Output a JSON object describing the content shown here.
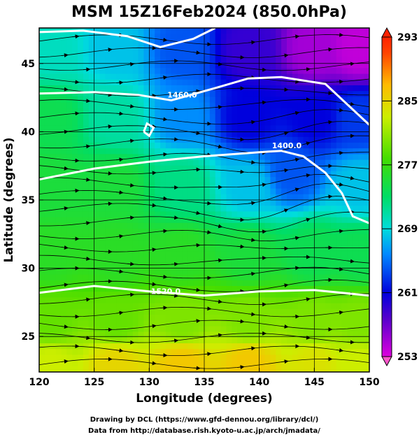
{
  "chart_data": {
    "type": "heatmap",
    "title": "MSM 15Z16Feb2024 (850.0hPa)",
    "xlabel": "Longitude (degrees)",
    "ylabel": "Latitude  (degrees)",
    "xlim": [
      120,
      150
    ],
    "ylim": [
      22.4,
      47.6
    ],
    "x_ticks": [
      120,
      125,
      130,
      135,
      140,
      145,
      150
    ],
    "y_ticks": [
      25,
      30,
      35,
      40,
      45
    ],
    "grid": true,
    "colorbar": {
      "min": 253,
      "max": 293,
      "ticks": [
        253,
        261,
        269,
        277,
        285,
        293
      ]
    },
    "temperature_field_points": [
      {
        "lon": 121,
        "lat": 46,
        "value": 270
      },
      {
        "lon": 127,
        "lat": 46,
        "value": 268
      },
      {
        "lon": 133,
        "lat": 46,
        "value": 264
      },
      {
        "lon": 139,
        "lat": 46,
        "value": 259
      },
      {
        "lon": 145,
        "lat": 46,
        "value": 255
      },
      {
        "lon": 149,
        "lat": 46,
        "value": 254
      },
      {
        "lon": 121,
        "lat": 41,
        "value": 274
      },
      {
        "lon": 127,
        "lat": 41,
        "value": 271
      },
      {
        "lon": 133,
        "lat": 41,
        "value": 266
      },
      {
        "lon": 139,
        "lat": 41,
        "value": 261
      },
      {
        "lon": 145,
        "lat": 41,
        "value": 261
      },
      {
        "lon": 149,
        "lat": 41,
        "value": 263
      },
      {
        "lon": 121,
        "lat": 36,
        "value": 275
      },
      {
        "lon": 127,
        "lat": 36,
        "value": 275
      },
      {
        "lon": 133,
        "lat": 36,
        "value": 272
      },
      {
        "lon": 139,
        "lat": 36,
        "value": 268
      },
      {
        "lon": 143,
        "lat": 37,
        "value": 264
      },
      {
        "lon": 149,
        "lat": 36,
        "value": 268
      },
      {
        "lon": 121,
        "lat": 31,
        "value": 276
      },
      {
        "lon": 127,
        "lat": 31,
        "value": 276
      },
      {
        "lon": 133,
        "lat": 31,
        "value": 276
      },
      {
        "lon": 139,
        "lat": 31,
        "value": 275
      },
      {
        "lon": 145,
        "lat": 31,
        "value": 274
      },
      {
        "lon": 149,
        "lat": 31,
        "value": 274
      },
      {
        "lon": 121,
        "lat": 26,
        "value": 279
      },
      {
        "lon": 127,
        "lat": 26,
        "value": 279
      },
      {
        "lon": 133,
        "lat": 26,
        "value": 280
      },
      {
        "lon": 139,
        "lat": 26,
        "value": 280
      },
      {
        "lon": 145,
        "lat": 26,
        "value": 280
      },
      {
        "lon": 149,
        "lat": 26,
        "value": 280
      },
      {
        "lon": 121,
        "lat": 23,
        "value": 283
      },
      {
        "lon": 127,
        "lat": 23,
        "value": 285
      },
      {
        "lon": 133,
        "lat": 23,
        "value": 286
      },
      {
        "lon": 139,
        "lat": 23,
        "value": 286
      },
      {
        "lon": 145,
        "lat": 23,
        "value": 284
      },
      {
        "lon": 149,
        "lat": 23,
        "value": 283
      }
    ],
    "height_contours": [
      {
        "label": "1400.0",
        "label_at": [
          142.5,
          38.8
        ],
        "points": [
          [
            120,
            36.5
          ],
          [
            125,
            37.3
          ],
          [
            130,
            37.8
          ],
          [
            135,
            38.2
          ],
          [
            140,
            38.5
          ],
          [
            142,
            38.6
          ],
          [
            144,
            38.2
          ],
          [
            146,
            37.0
          ],
          [
            147.5,
            35.5
          ],
          [
            148.5,
            33.8
          ],
          [
            150,
            33.3
          ]
        ]
      },
      {
        "label": "1460.0",
        "label_at": [
          133,
          42.5
        ],
        "points": [
          [
            120,
            42.8
          ],
          [
            125,
            42.9
          ],
          [
            129,
            42.7
          ],
          [
            132,
            42.3
          ],
          [
            136,
            43.2
          ],
          [
            139,
            43.9
          ],
          [
            142,
            44.0
          ],
          [
            146,
            43.5
          ],
          [
            148,
            42.0
          ],
          [
            150,
            40.5
          ]
        ]
      },
      {
        "label": "1520.0",
        "label_at": [
          131.5,
          28.1
        ],
        "points": [
          [
            120,
            28.2
          ],
          [
            125,
            28.7
          ],
          [
            130,
            28.3
          ],
          [
            135,
            28.0
          ],
          [
            140,
            28.3
          ],
          [
            145,
            28.4
          ],
          [
            150,
            28.0
          ]
        ]
      },
      {
        "label": "",
        "label_at": null,
        "points": [
          [
            120,
            47.3
          ],
          [
            124,
            47.4
          ],
          [
            128,
            47.0
          ],
          [
            131,
            46.2
          ],
          [
            134,
            46.8
          ],
          [
            136,
            47.6
          ]
        ]
      },
      {
        "label": "",
        "label_at": null,
        "points": [
          [
            129.5,
            40.0
          ],
          [
            129.8,
            40.6
          ],
          [
            130.4,
            40.3
          ],
          [
            130.0,
            39.7
          ],
          [
            129.5,
            40.0
          ]
        ]
      }
    ],
    "credits": [
      "Drawing by DCL (https://www.gfd-dennou.org/library/dcl/)",
      "Data from http://database.rish.kyoto-u.ac.jp/arch/jmadata/"
    ]
  }
}
